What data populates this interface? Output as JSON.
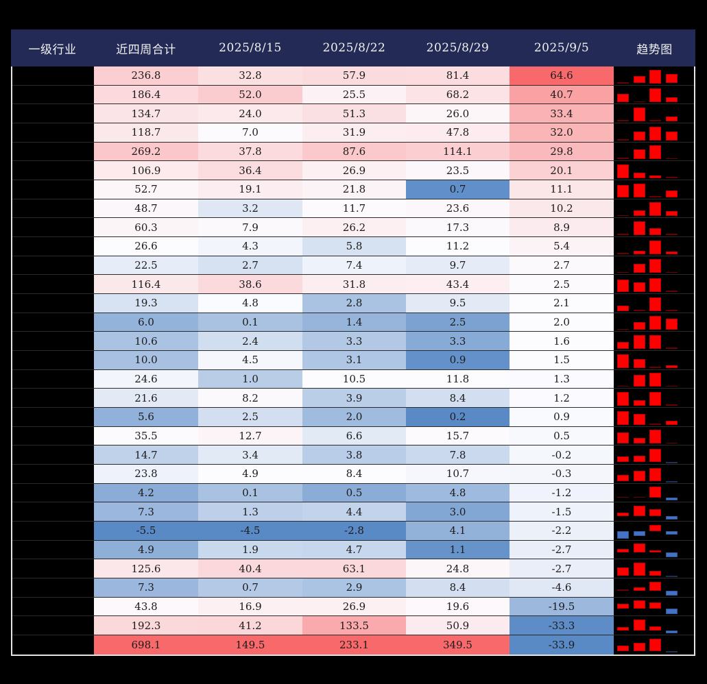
{
  "header": {
    "columns": [
      "一级行业",
      "近四周合计",
      "2025/8/15",
      "2025/8/22",
      "2025/8/29",
      "2025/9/5",
      "趋势图"
    ]
  },
  "colors": {
    "header_bg": "#222A55",
    "scale_low": "#5A8AC6",
    "scale_mid": "#FCFCFF",
    "scale_high": "#F8696B",
    "bar_positive": "#FF0000",
    "bar_negative": "#4472C4"
  },
  "rows": [
    {
      "industry": "",
      "total": "236.8",
      "w1": "32.8",
      "w2": "57.9",
      "w3": "81.4",
      "w4": "64.6"
    },
    {
      "industry": "",
      "total": "186.4",
      "w1": "52.0",
      "w2": "25.5",
      "w3": "68.2",
      "w4": "40.7"
    },
    {
      "industry": "",
      "total": "134.7",
      "w1": "24.0",
      "w2": "51.3",
      "w3": "26.0",
      "w4": "33.4"
    },
    {
      "industry": "",
      "total": "118.7",
      "w1": "7.0",
      "w2": "31.9",
      "w3": "47.8",
      "w4": "32.0"
    },
    {
      "industry": "",
      "total": "269.2",
      "w1": "37.8",
      "w2": "87.6",
      "w3": "114.1",
      "w4": "29.8"
    },
    {
      "industry": "",
      "total": "106.9",
      "w1": "36.4",
      "w2": "26.9",
      "w3": "23.5",
      "w4": "20.1"
    },
    {
      "industry": "",
      "total": "52.7",
      "w1": "19.1",
      "w2": "21.8",
      "w3": "0.7",
      "w4": "11.1"
    },
    {
      "industry": "",
      "total": "48.7",
      "w1": "3.2",
      "w2": "11.7",
      "w3": "23.6",
      "w4": "10.2"
    },
    {
      "industry": "",
      "total": "60.3",
      "w1": "7.9",
      "w2": "26.2",
      "w3": "17.3",
      "w4": "8.9"
    },
    {
      "industry": "",
      "total": "26.6",
      "w1": "4.3",
      "w2": "5.8",
      "w3": "11.2",
      "w4": "5.4"
    },
    {
      "industry": "",
      "total": "22.5",
      "w1": "2.7",
      "w2": "7.4",
      "w3": "9.7",
      "w4": "2.7"
    },
    {
      "industry": "",
      "total": "116.4",
      "w1": "38.6",
      "w2": "31.8",
      "w3": "43.4",
      "w4": "2.5"
    },
    {
      "industry": "",
      "total": "19.3",
      "w1": "4.8",
      "w2": "2.8",
      "w3": "9.5",
      "w4": "2.1"
    },
    {
      "industry": "",
      "total": "6.0",
      "w1": "0.1",
      "w2": "1.4",
      "w3": "2.5",
      "w4": "2.0"
    },
    {
      "industry": "",
      "total": "10.6",
      "w1": "2.4",
      "w2": "3.3",
      "w3": "3.3",
      "w4": "1.6"
    },
    {
      "industry": "",
      "total": "10.0",
      "w1": "4.5",
      "w2": "3.1",
      "w3": "0.9",
      "w4": "1.5"
    },
    {
      "industry": "",
      "total": "24.6",
      "w1": "1.0",
      "w2": "10.5",
      "w3": "11.8",
      "w4": "1.3"
    },
    {
      "industry": "",
      "total": "21.6",
      "w1": "8.2",
      "w2": "3.9",
      "w3": "8.4",
      "w4": "1.2"
    },
    {
      "industry": "",
      "total": "5.6",
      "w1": "2.5",
      "w2": "2.0",
      "w3": "0.2",
      "w4": "0.9"
    },
    {
      "industry": "",
      "total": "35.5",
      "w1": "12.7",
      "w2": "6.6",
      "w3": "15.7",
      "w4": "0.5"
    },
    {
      "industry": "",
      "total": "14.7",
      "w1": "3.4",
      "w2": "3.8",
      "w3": "7.8",
      "w4": "-0.2"
    },
    {
      "industry": "",
      "total": "23.8",
      "w1": "4.9",
      "w2": "8.4",
      "w3": "10.7",
      "w4": "-0.3"
    },
    {
      "industry": "",
      "total": "4.2",
      "w1": "0.1",
      "w2": "0.5",
      "w3": "4.8",
      "w4": "-1.2"
    },
    {
      "industry": "",
      "total": "7.3",
      "w1": "1.3",
      "w2": "4.4",
      "w3": "3.0",
      "w4": "-1.5"
    },
    {
      "industry": "",
      "total": "-5.5",
      "w1": "-4.5",
      "w2": "-2.8",
      "w3": "4.1",
      "w4": "-2.2"
    },
    {
      "industry": "",
      "total": "4.9",
      "w1": "1.9",
      "w2": "4.7",
      "w3": "1.1",
      "w4": "-2.7"
    },
    {
      "industry": "",
      "total": "125.6",
      "w1": "40.4",
      "w2": "63.1",
      "w3": "24.8",
      "w4": "-2.7"
    },
    {
      "industry": "",
      "total": "7.3",
      "w1": "0.7",
      "w2": "2.9",
      "w3": "8.4",
      "w4": "-4.6"
    },
    {
      "industry": "",
      "total": "43.8",
      "w1": "16.9",
      "w2": "26.9",
      "w3": "19.6",
      "w4": "-19.5"
    },
    {
      "industry": "",
      "total": "192.3",
      "w1": "41.2",
      "w2": "133.5",
      "w3": "50.9",
      "w4": "-33.3"
    },
    {
      "industry": "",
      "total": "698.1",
      "w1": "149.5",
      "w2": "233.1",
      "w3": "349.5",
      "w4": "-33.9"
    }
  ]
}
